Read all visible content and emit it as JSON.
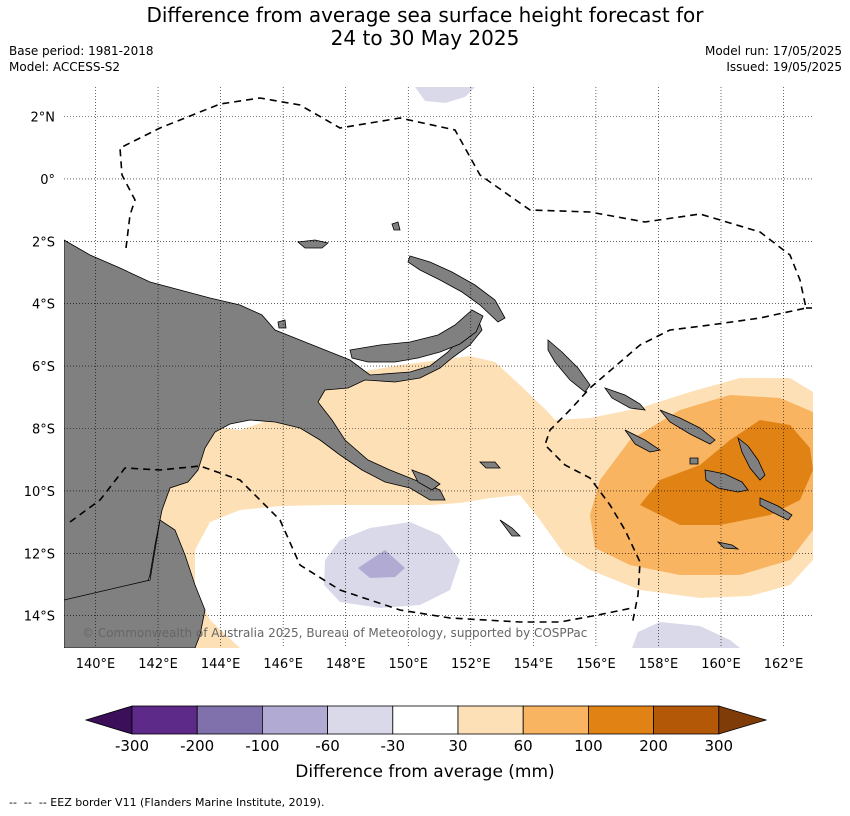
{
  "header": {
    "title_line1": "Difference from average sea surface height forecast for",
    "title_line2": "24 to 30 May 2025",
    "base_period": "Base period: 1981-2018",
    "model": "Model: ACCESS-S2",
    "model_run": "Model run: 17/05/2025",
    "issued": "Issued: 19/05/2025"
  },
  "map": {
    "lat_labels": [
      "2°N",
      "0°",
      "2°S",
      "4°S",
      "6°S",
      "8°S",
      "10°S",
      "12°S",
      "14°S"
    ],
    "lon_labels": [
      "140°E",
      "142°E",
      "144°E",
      "146°E",
      "148°E",
      "150°E",
      "152°E",
      "154°E",
      "156°E",
      "158°E",
      "160°E",
      "162°E"
    ],
    "copyright": "© Commonwealth of Australia 2025, Bureau of Meteorology, supported by COSPPac",
    "land_color": "#808080"
  },
  "colorbar": {
    "ticks": [
      "-300",
      "-200",
      "-100",
      "-60",
      "-30",
      "30",
      "60",
      "100",
      "200",
      "300"
    ],
    "colors": [
      "#3b0f5a",
      "#5e2a8a",
      "#8071ad",
      "#b1aad2",
      "#d9d9ea",
      "#ffffff",
      "#fde0b6",
      "#f8b460",
      "#e08214",
      "#b35806",
      "#7f3b08"
    ],
    "label": "Difference from average (mm)"
  },
  "legend": {
    "eez_text": "--  --  -- EEZ border V11 (Flanders Marine Institute, 2019)."
  }
}
